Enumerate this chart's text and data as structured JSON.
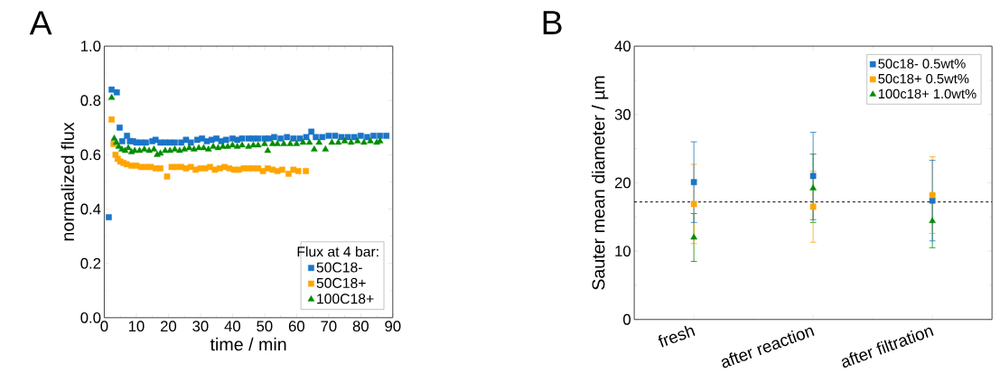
{
  "chart_data": [
    {
      "type": "scatter",
      "xlabel": "time / min",
      "ylabel": "normalized flux",
      "annotations": [
        "A"
      ],
      "legend_title": "Flux at 4 bar:",
      "legend": "bottom right",
      "xlim": [
        0,
        90
      ],
      "xticks": [
        0,
        10,
        20,
        30,
        40,
        50,
        60,
        70,
        80,
        90
      ],
      "ylim": [
        0,
        1.0
      ],
      "yticks": [
        {
          "value": 0,
          "label": "0.0"
        },
        0.2,
        0.4,
        0.6,
        0.8,
        {
          "value": 1.0,
          "label": "1.0"
        }
      ],
      "series": [
        {
          "name": "50C18-",
          "color": "#1a75c8",
          "marker": "square",
          "x": [
            1.4,
            2.3,
            3.9,
            4.8,
            5.6,
            7.1,
            8,
            9,
            10,
            11.5,
            13,
            15,
            16,
            17.5,
            19,
            20.5,
            22,
            24,
            25.5,
            27,
            29,
            30.5,
            32,
            33.5,
            35,
            36.5,
            38,
            40,
            41.5,
            43,
            45,
            46.5,
            48,
            50,
            51.5,
            53,
            55,
            57,
            59,
            61,
            63,
            64.6,
            66,
            68,
            70,
            72,
            74,
            76,
            78,
            80,
            82,
            84,
            86,
            88
          ],
          "values": [
            0.37,
            0.84,
            0.83,
            0.7,
            0.65,
            0.67,
            0.65,
            0.65,
            0.645,
            0.645,
            0.645,
            0.65,
            0.655,
            0.645,
            0.645,
            0.645,
            0.645,
            0.645,
            0.655,
            0.645,
            0.655,
            0.66,
            0.65,
            0.655,
            0.66,
            0.65,
            0.655,
            0.66,
            0.655,
            0.66,
            0.66,
            0.66,
            0.66,
            0.66,
            0.66,
            0.665,
            0.66,
            0.665,
            0.66,
            0.66,
            0.665,
            0.685,
            0.665,
            0.665,
            0.67,
            0.67,
            0.665,
            0.665,
            0.665,
            0.67,
            0.665,
            0.67,
            0.67,
            0.67
          ]
        },
        {
          "name": "50C18+",
          "color": "#ffa500",
          "marker": "square",
          "x": [
            2.3,
            2.9,
            3.5,
            4.2,
            5,
            6,
            7,
            8.5,
            10,
            11.5,
            13,
            14.5,
            16,
            17.5,
            19.6,
            21,
            22.5,
            24,
            25.5,
            27,
            28.5,
            30,
            31.5,
            33,
            34.5,
            36,
            37.5,
            39,
            40.5,
            42,
            43.5,
            45,
            46.5,
            48,
            49.5,
            51,
            52.5,
            54,
            55.5,
            57.5,
            59,
            60.5,
            62.9
          ],
          "values": [
            0.73,
            0.64,
            0.6,
            0.585,
            0.575,
            0.57,
            0.565,
            0.56,
            0.56,
            0.555,
            0.555,
            0.555,
            0.55,
            0.55,
            0.52,
            0.555,
            0.555,
            0.555,
            0.55,
            0.555,
            0.545,
            0.55,
            0.55,
            0.555,
            0.545,
            0.55,
            0.555,
            0.55,
            0.545,
            0.545,
            0.55,
            0.55,
            0.55,
            0.55,
            0.54,
            0.55,
            0.545,
            0.54,
            0.545,
            0.53,
            0.545,
            0.54,
            0.54
          ]
        },
        {
          "name": "100C18+",
          "color": "#008c00",
          "marker": "triangle",
          "x": [
            2.3,
            3.1,
            3.8,
            4.5,
            5.5,
            6.5,
            7.5,
            8.5,
            9.5,
            11,
            12.5,
            14,
            15.5,
            16.5,
            17.5,
            19,
            20.5,
            22,
            23.5,
            25,
            26.5,
            28,
            29.5,
            31,
            32.5,
            34,
            35.5,
            37,
            38.5,
            40,
            41.5,
            43,
            45,
            46.5,
            48,
            50,
            51,
            52.5,
            54,
            56,
            58,
            60,
            62,
            64,
            65.5,
            67,
            69,
            71,
            73,
            75,
            77,
            79,
            81,
            83,
            85,
            86
          ],
          "values": [
            0.81,
            0.66,
            0.645,
            0.63,
            0.62,
            0.615,
            0.625,
            0.61,
            0.615,
            0.615,
            0.62,
            0.615,
            0.62,
            0.6,
            0.605,
            0.615,
            0.615,
            0.62,
            0.615,
            0.62,
            0.625,
            0.62,
            0.625,
            0.625,
            0.62,
            0.63,
            0.625,
            0.63,
            0.63,
            0.635,
            0.63,
            0.635,
            0.63,
            0.635,
            0.635,
            0.64,
            0.615,
            0.64,
            0.64,
            0.64,
            0.64,
            0.64,
            0.645,
            0.645,
            0.62,
            0.645,
            0.62,
            0.645,
            0.645,
            0.65,
            0.645,
            0.65,
            0.645,
            0.65,
            0.645,
            0.65
          ]
        }
      ]
    },
    {
      "type": "scatter",
      "ylabel": "Sauter mean diameter / µm",
      "annotations": [
        "B"
      ],
      "legend": "top right",
      "categories": [
        "fresh",
        "after reaction",
        "after filtration"
      ],
      "ylim": [
        0,
        40
      ],
      "yticks": [
        0,
        10,
        20,
        30,
        40
      ],
      "ref_lines": [
        {
          "axis": "y",
          "value": 17.2,
          "color": "#000000",
          "line_style": "dashed"
        }
      ],
      "series": [
        {
          "name": "50c18- 0.5wt%",
          "color": "#1a75c8",
          "marker": "square",
          "values": [
            20.1,
            21.0,
            17.4
          ],
          "errors": [
            5.9,
            6.4,
            5.9
          ]
        },
        {
          "name": "50c18+ 0.5wt%",
          "color": "#ffa500",
          "marker": "square",
          "values": [
            16.9,
            16.5,
            18.2
          ],
          "errors": [
            5.8,
            5.2,
            5.6
          ]
        },
        {
          "name": "100c18+ 1.0wt%",
          "color": "#008c00",
          "marker": "triangle",
          "values": [
            12.0,
            19.2,
            14.4
          ],
          "errors": [
            3.5,
            5.0,
            3.9
          ]
        }
      ]
    }
  ]
}
